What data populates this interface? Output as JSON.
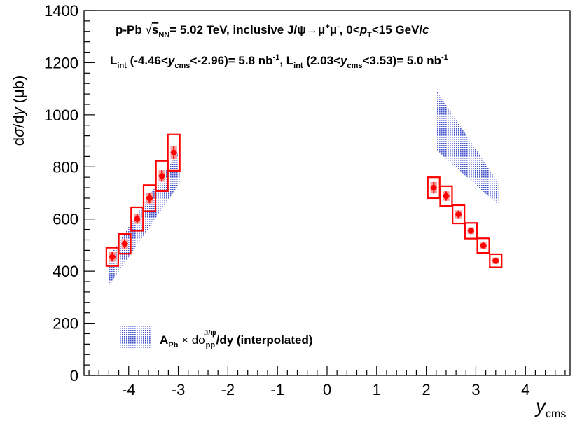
{
  "chart_data": {
    "type": "scatter",
    "xlabel_main": "y",
    "xlabel_sub": "cms",
    "ylabel_pre": "d",
    "ylabel_sigma": "σ",
    "ylabel_mid": "/d",
    "ylabel_y": "y",
    "ylabel_unit": " (μb)",
    "xlim": [
      -4.9,
      4.9
    ],
    "ylim": [
      0,
      1400
    ],
    "x_ticks": [
      -4,
      -3,
      -2,
      -1,
      0,
      1,
      2,
      3,
      4
    ],
    "x_tick_labels": [
      "-4",
      "-3",
      "-2",
      "-1",
      "0",
      "1",
      "2",
      "3",
      "4"
    ],
    "y_ticks": [
      0,
      200,
      400,
      600,
      800,
      1000,
      1200,
      1400
    ],
    "y_tick_labels": [
      "0",
      "200",
      "400",
      "600",
      "800",
      "1000",
      "1200",
      "1400"
    ],
    "grid": false,
    "colors": {
      "data": "#ff0000",
      "data_syst_fill": "#f4a0a0",
      "band": "#4455cc"
    },
    "annotation_line1": {
      "a": "p-Pb  ",
      "sqrt": "√",
      "s": "s",
      "nn": "NN",
      "b": "= 5.02 TeV, inclusive J/ψ→μ",
      "plus": "+",
      "mu": "μ",
      "minus": "-",
      "c": ", 0<",
      "p": "p",
      "T": "T",
      "d": "<15 GeV/",
      "cunit": "c"
    },
    "annotation_line2": {
      "L1": "L",
      "int1": "int",
      "r1a": " (-4.46<",
      "y1": "y",
      "cms1": "cms",
      "r1b": "<-2.96)= 5.8 nb",
      "e1": "-1",
      "comma": ", L",
      "int2": "int",
      "r2a": " (2.03<",
      "y2": "y",
      "cms2": "cms",
      "r2b": "<3.53)= 5.0 nb",
      "e2": "-1"
    },
    "legend": {
      "position": "bottom-left",
      "A": "A",
      "Pb": "Pb",
      "times": " × dσ",
      "pp": "pp",
      "jpsi": "J/ψ",
      "rest": "/dy (interpolated)"
    },
    "series": [
      {
        "name": "",
        "x": [
          -4.33,
          -4.08,
          -3.83,
          -3.58,
          -3.33,
          -3.09
        ],
        "y": [
          455,
          505,
          600,
          680,
          765,
          855
        ],
        "x_err": [
          0.12,
          0.12,
          0.12,
          0.12,
          0.12,
          0.12
        ],
        "stat_err": [
          18,
          18,
          18,
          20,
          22,
          25
        ],
        "syst_err": [
          35,
          38,
          45,
          50,
          58,
          70
        ]
      },
      {
        "name": "",
        "x": [
          2.15,
          2.4,
          2.65,
          2.9,
          3.15,
          3.4
        ],
        "y": [
          720,
          688,
          618,
          555,
          498,
          440
        ],
        "x_err": [
          0.12,
          0.12,
          0.12,
          0.12,
          0.12,
          0.12
        ],
        "stat_err": [
          22,
          18,
          15,
          13,
          12,
          12
        ],
        "syst_err": [
          40,
          38,
          35,
          30,
          28,
          25
        ]
      }
    ],
    "bands": [
      {
        "name": "A_Pb x dsigma_pp/dy (interpolated)",
        "x": [
          -4.4,
          -2.96
        ],
        "lower": [
          345,
          740
        ],
        "upper": [
          455,
          870
        ]
      },
      {
        "name": "A_Pb x dsigma_pp/dy (interpolated)",
        "x": [
          2.2,
          3.45
        ],
        "lower": [
          865,
          655
        ],
        "upper": [
          1095,
          740
        ]
      }
    ]
  }
}
